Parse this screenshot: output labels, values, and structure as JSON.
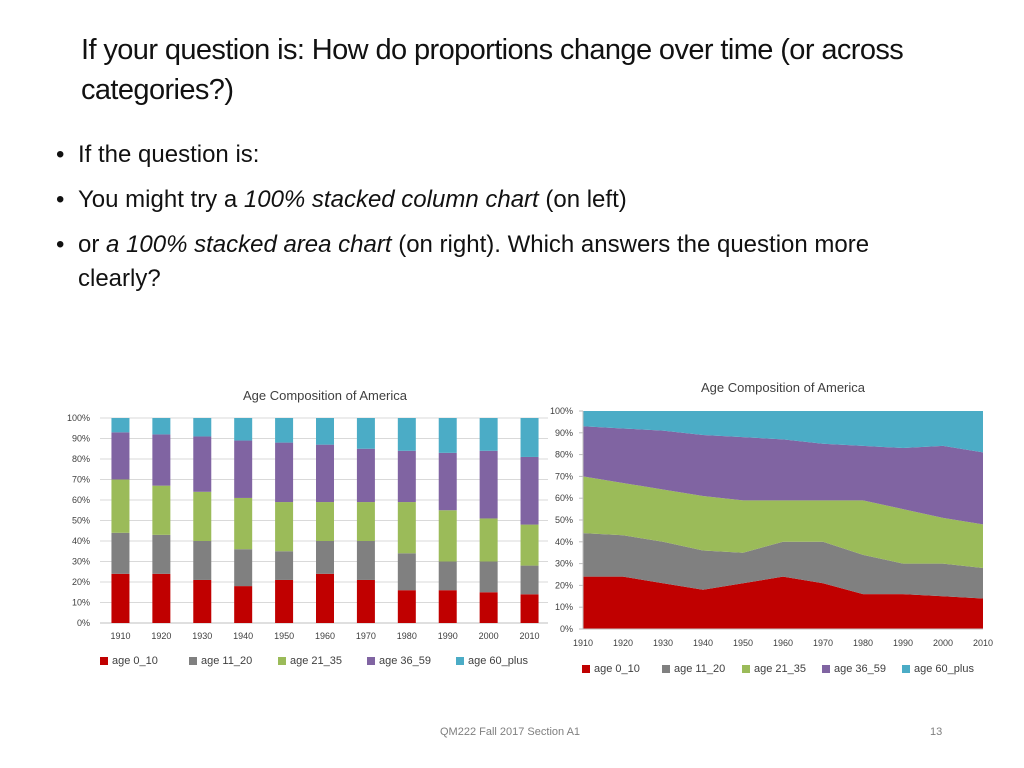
{
  "slide": {
    "title": "If your question is: How do proportions change over time (or across categories?)",
    "bullet1": "If the question is:",
    "bullet2_pre": "You might try a ",
    "bullet2_em": "100% stacked column chart",
    "bullet2_post": " (on left)",
    "bullet3_pre": "or ",
    "bullet3_em": "a 100% stacked area chart",
    "bullet3_post": " (on right). Which answers the question more clearly?",
    "footer": "QM222 Fall 2017 Section A1",
    "page_number": "13"
  },
  "colors": {
    "age_0_10": "#c00000",
    "age_11_20": "#808080",
    "age_21_35": "#9bbb59",
    "age_36_59": "#8064a2",
    "age_60_plus": "#4bacc6"
  },
  "chart_data": [
    {
      "type": "bar",
      "stacked": "100%",
      "title": "Age Composition of America",
      "categories": [
        "1910",
        "1920",
        "1930",
        "1940",
        "1950",
        "1960",
        "1970",
        "1980",
        "1990",
        "2000",
        "2010"
      ],
      "yticks": [
        "0%",
        "10%",
        "20%",
        "30%",
        "40%",
        "50%",
        "60%",
        "70%",
        "80%",
        "90%",
        "100%"
      ],
      "ylim": [
        0,
        100
      ],
      "legend_position": "bottom",
      "series": [
        {
          "name": "age 0_10",
          "key": "age_0_10",
          "values": [
            24,
            24,
            21,
            18,
            21,
            24,
            21,
            16,
            16,
            15,
            14
          ]
        },
        {
          "name": "age 11_20",
          "key": "age_11_20",
          "values": [
            20,
            19,
            19,
            18,
            14,
            16,
            19,
            18,
            14,
            15,
            14
          ]
        },
        {
          "name": "age 21_35",
          "key": "age_21_35",
          "values": [
            26,
            24,
            24,
            25,
            24,
            19,
            19,
            25,
            25,
            21,
            20
          ]
        },
        {
          "name": "age 36_59",
          "key": "age_36_59",
          "values": [
            23,
            25,
            27,
            28,
            29,
            28,
            26,
            25,
            28,
            33,
            33
          ]
        },
        {
          "name": "age 60_plus",
          "key": "age_60_plus",
          "values": [
            7,
            8,
            9,
            11,
            12,
            13,
            15,
            16,
            17,
            16,
            19
          ]
        }
      ]
    },
    {
      "type": "area",
      "stacked": "100%",
      "title": "Age Composition of America",
      "categories": [
        "1910",
        "1920",
        "1930",
        "1940",
        "1950",
        "1960",
        "1970",
        "1980",
        "1990",
        "2000",
        "2010"
      ],
      "yticks": [
        "0%",
        "10%",
        "20%",
        "30%",
        "40%",
        "50%",
        "60%",
        "70%",
        "80%",
        "90%",
        "100%"
      ],
      "ylim": [
        0,
        100
      ],
      "legend_position": "bottom",
      "series": [
        {
          "name": "age 0_10",
          "key": "age_0_10",
          "values": [
            24,
            24,
            21,
            18,
            21,
            24,
            21,
            16,
            16,
            15,
            14
          ]
        },
        {
          "name": "age 11_20",
          "key": "age_11_20",
          "values": [
            20,
            19,
            19,
            18,
            14,
            16,
            19,
            18,
            14,
            15,
            14
          ]
        },
        {
          "name": "age 21_35",
          "key": "age_21_35",
          "values": [
            26,
            24,
            24,
            25,
            24,
            19,
            19,
            25,
            25,
            21,
            20
          ]
        },
        {
          "name": "age 36_59",
          "key": "age_36_59",
          "values": [
            23,
            25,
            27,
            28,
            29,
            28,
            26,
            25,
            28,
            33,
            33
          ]
        },
        {
          "name": "age 60_plus",
          "key": "age_60_plus",
          "values": [
            7,
            8,
            9,
            11,
            12,
            13,
            15,
            16,
            17,
            16,
            19
          ]
        }
      ]
    }
  ]
}
